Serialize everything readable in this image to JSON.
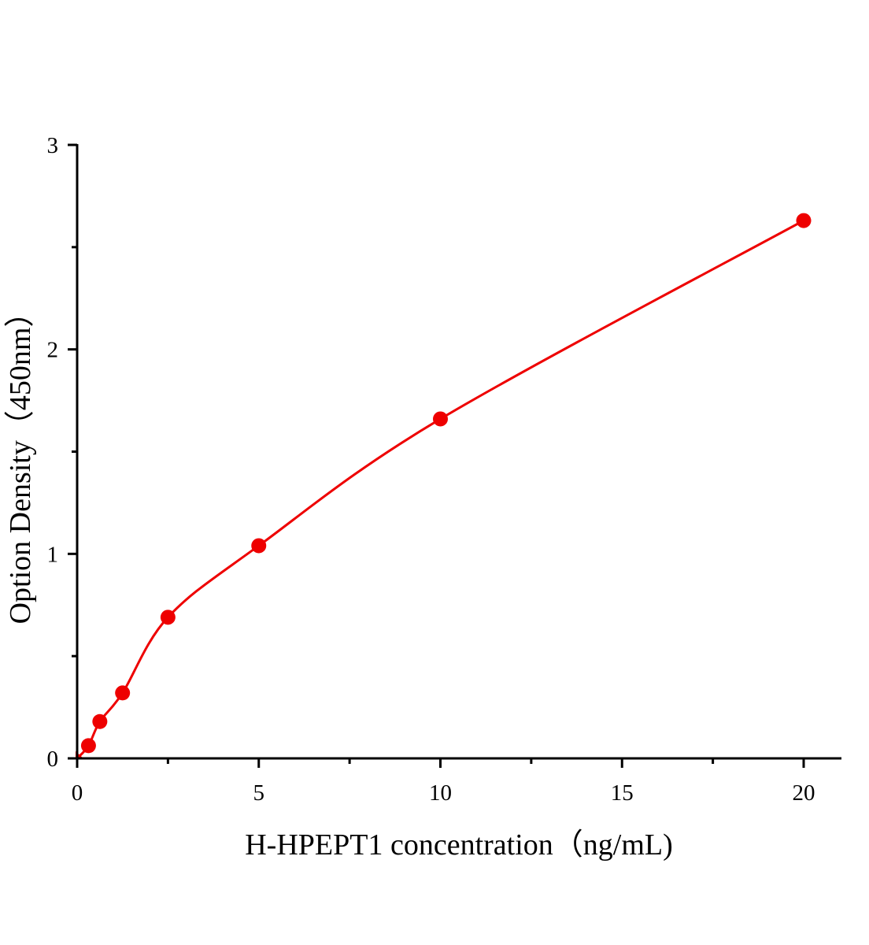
{
  "chart_data": {
    "type": "scatter",
    "title": "",
    "xlabel": "H-HPEPT1 concentration（ng/mL)",
    "ylabel": "Option Density（450nm）",
    "xlim": [
      0,
      21
    ],
    "ylim": [
      0,
      3
    ],
    "x_ticks": [
      0,
      5,
      10,
      15,
      20
    ],
    "y_ticks": [
      0,
      1,
      2,
      3
    ],
    "x_minor_ticks": [
      2.5,
      7.5,
      12.5,
      17.5
    ],
    "y_minor_ticks": [
      0.5,
      1.5,
      2.5
    ],
    "grid": false,
    "series": [
      {
        "x": [
          0,
          0.3125,
          0.625,
          1.25,
          2.5,
          5,
          10,
          20
        ],
        "y": [
          0.0,
          0.062,
          0.18,
          0.32,
          0.69,
          1.04,
          1.66,
          2.63
        ],
        "color": "#ee0000",
        "marker": "circle",
        "fit_line": true
      }
    ]
  }
}
